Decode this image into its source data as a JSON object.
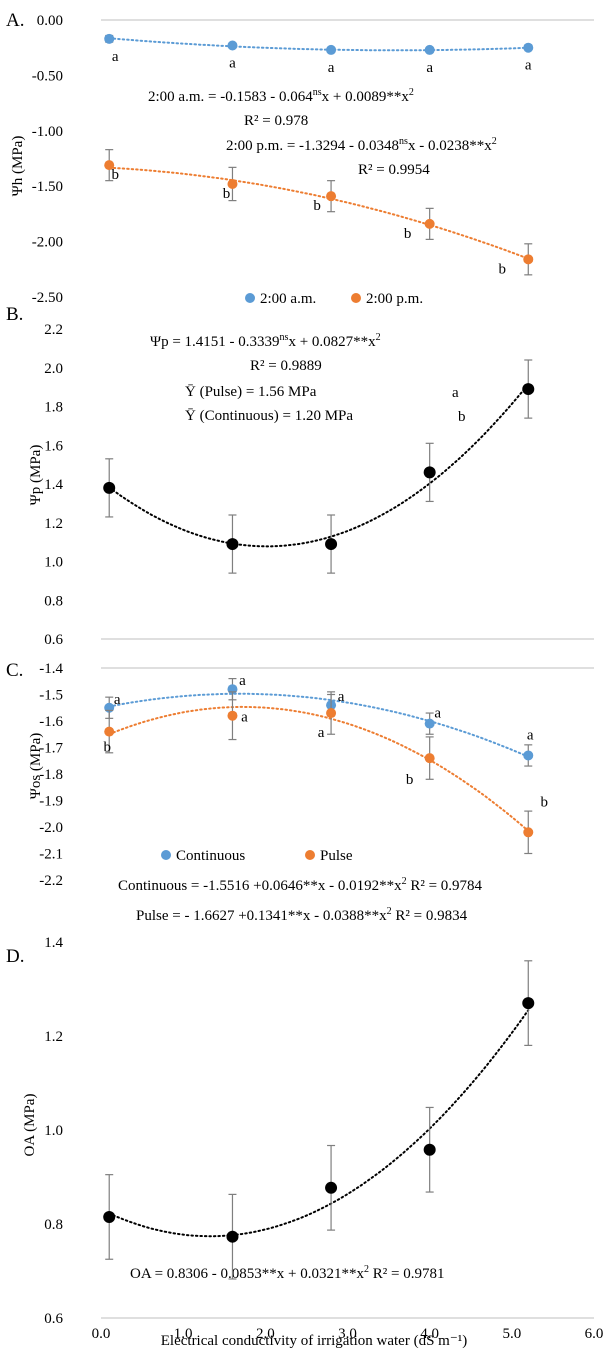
{
  "colors": {
    "blue": "#5B9BD5",
    "orange": "#ED7D31",
    "black": "#000000",
    "errbar": "#7f7f7f",
    "axis": "#bfbfbf"
  },
  "x_axis": {
    "title": "Electrical conductivity of irrigation water  (dS m⁻¹)",
    "ticks": [
      "0.0",
      "1.0",
      "2.0",
      "3.0",
      "4.0",
      "5.0",
      "6.0"
    ],
    "range": [
      0,
      6
    ]
  },
  "chart_data": [
    {
      "panel": "A.",
      "type": "scatter",
      "ylabel": "Ψh (MPa)",
      "ylim": [
        -2.5,
        0
      ],
      "yticks": [
        "0.00",
        "-0.50",
        "-1.00",
        "-1.50",
        "-2.00",
        "-2.50"
      ],
      "x": [
        0.1,
        1.6,
        2.8,
        4.0,
        5.2
      ],
      "series": [
        {
          "name": "2:00 a.m.",
          "color": "blue",
          "values": [
            -0.17,
            -0.23,
            -0.27,
            -0.27,
            -0.25
          ],
          "errors": [
            0.03,
            0.02,
            0.02,
            0.02,
            0.02
          ],
          "letters": [
            "a",
            "a",
            "a",
            "a",
            "a"
          ],
          "fit": [
            -0.1583,
            -0.064,
            0.0089
          ]
        },
        {
          "name": "2:00 p.m.",
          "color": "orange",
          "values": [
            -1.31,
            -1.48,
            -1.59,
            -1.84,
            -2.16
          ],
          "errors": [
            0.14,
            0.15,
            0.14,
            0.14,
            0.14
          ],
          "letters": [
            "b",
            "b",
            "b",
            "b",
            "b"
          ],
          "fit": [
            -1.3294,
            -0.0348,
            -0.0238
          ]
        }
      ],
      "annotations": [
        "2:00 a.m. = -0.1583  - 0.064",
        "ns",
        "x + 0.0089**x",
        "2",
        "R² = 0.978",
        "2:00 p.m. = -1.3294 - 0.0348",
        "ns",
        "x - 0.0238**x",
        "2",
        "R² = 0.9954"
      ],
      "legend": [
        "2:00 a.m.",
        "2:00 p.m."
      ]
    },
    {
      "panel": "B.",
      "type": "scatter",
      "ylabel": "Ψp (MPa)",
      "ylim": [
        0.6,
        2.2
      ],
      "yticks": [
        "2.2",
        "2.0",
        "1.8",
        "1.6",
        "1.4",
        "1.2",
        "1.0",
        "0.8",
        "0.6"
      ],
      "x": [
        0.1,
        1.6,
        2.8,
        4.0,
        5.2
      ],
      "series": [
        {
          "name": "",
          "color": "black",
          "values": [
            1.38,
            1.09,
            1.09,
            1.46,
            1.89
          ],
          "errors": [
            0.15,
            0.15,
            0.15,
            0.15,
            0.15
          ],
          "fit": [
            1.4151,
            -0.3339,
            0.0827
          ]
        }
      ],
      "annotations": [
        "Ψp = 1.4151 - 0.3339",
        "ns",
        "x +  0.0827**x",
        "2",
        "R² = 0.9889",
        "Ȳ (Pulse) = 1.56 MPa",
        "a",
        "Ȳ (Continuous) = 1.20 MPa",
        "b"
      ]
    },
    {
      "panel": "C.",
      "type": "scatter",
      "ylabel": "Ψos (MPa)",
      "ylim": [
        -2.2,
        -1.4
      ],
      "yticks": [
        "-1.4",
        "-1.5",
        "-1.6",
        "-1.7",
        "-1.8",
        "-1.9",
        "-2.0",
        "-2.1",
        "-2.2"
      ],
      "x": [
        0.1,
        1.6,
        2.8,
        4.0,
        5.2
      ],
      "series": [
        {
          "name": "Continuous",
          "color": "blue",
          "values": [
            -1.55,
            -1.48,
            -1.54,
            -1.61,
            -1.73
          ],
          "errors": [
            0.04,
            0.04,
            0.04,
            0.04,
            0.04
          ],
          "letters": [
            "a",
            "a",
            "a",
            "a",
            "a"
          ],
          "fit": [
            -1.5516,
            0.0646,
            -0.0192
          ]
        },
        {
          "name": "Pulse",
          "color": "orange",
          "values": [
            -1.64,
            -1.58,
            -1.57,
            -1.74,
            -2.02
          ],
          "errors": [
            0.08,
            0.09,
            0.08,
            0.08,
            0.08
          ],
          "letters": [
            "b",
            "a",
            "a",
            "b",
            "b"
          ],
          "fit": [
            -1.6627,
            0.1341,
            -0.0388
          ]
        }
      ],
      "legend": [
        "Continuous",
        "Pulse"
      ],
      "annotations": [
        "Continuous = -1.5516 +0.0646**x - 0.0192**x",
        "2",
        " R² = 0.9784",
        "Pulse = - 1.6627 +0.1341**x - 0.0388**x",
        "2",
        " R² = 0.9834"
      ]
    },
    {
      "panel": "D.",
      "type": "scatter",
      "ylabel": "OA (MPa)",
      "ylim": [
        0.6,
        1.4
      ],
      "yticks": [
        "1.4",
        "1.2",
        "1.0",
        "0.8",
        "0.6"
      ],
      "x": [
        0.1,
        1.6,
        2.8,
        4.0,
        5.2
      ],
      "series": [
        {
          "name": "",
          "color": "black",
          "values": [
            0.815,
            0.773,
            0.877,
            0.958,
            1.27
          ],
          "errors": [
            0.09,
            0.09,
            0.09,
            0.09,
            0.09
          ],
          "fit": [
            0.8306,
            -0.0853,
            0.0321
          ]
        }
      ],
      "annotations": [
        "OA = 0.8306  - 0.0853**x + 0.0321**x",
        "2",
        " R² = 0.9781"
      ]
    }
  ]
}
